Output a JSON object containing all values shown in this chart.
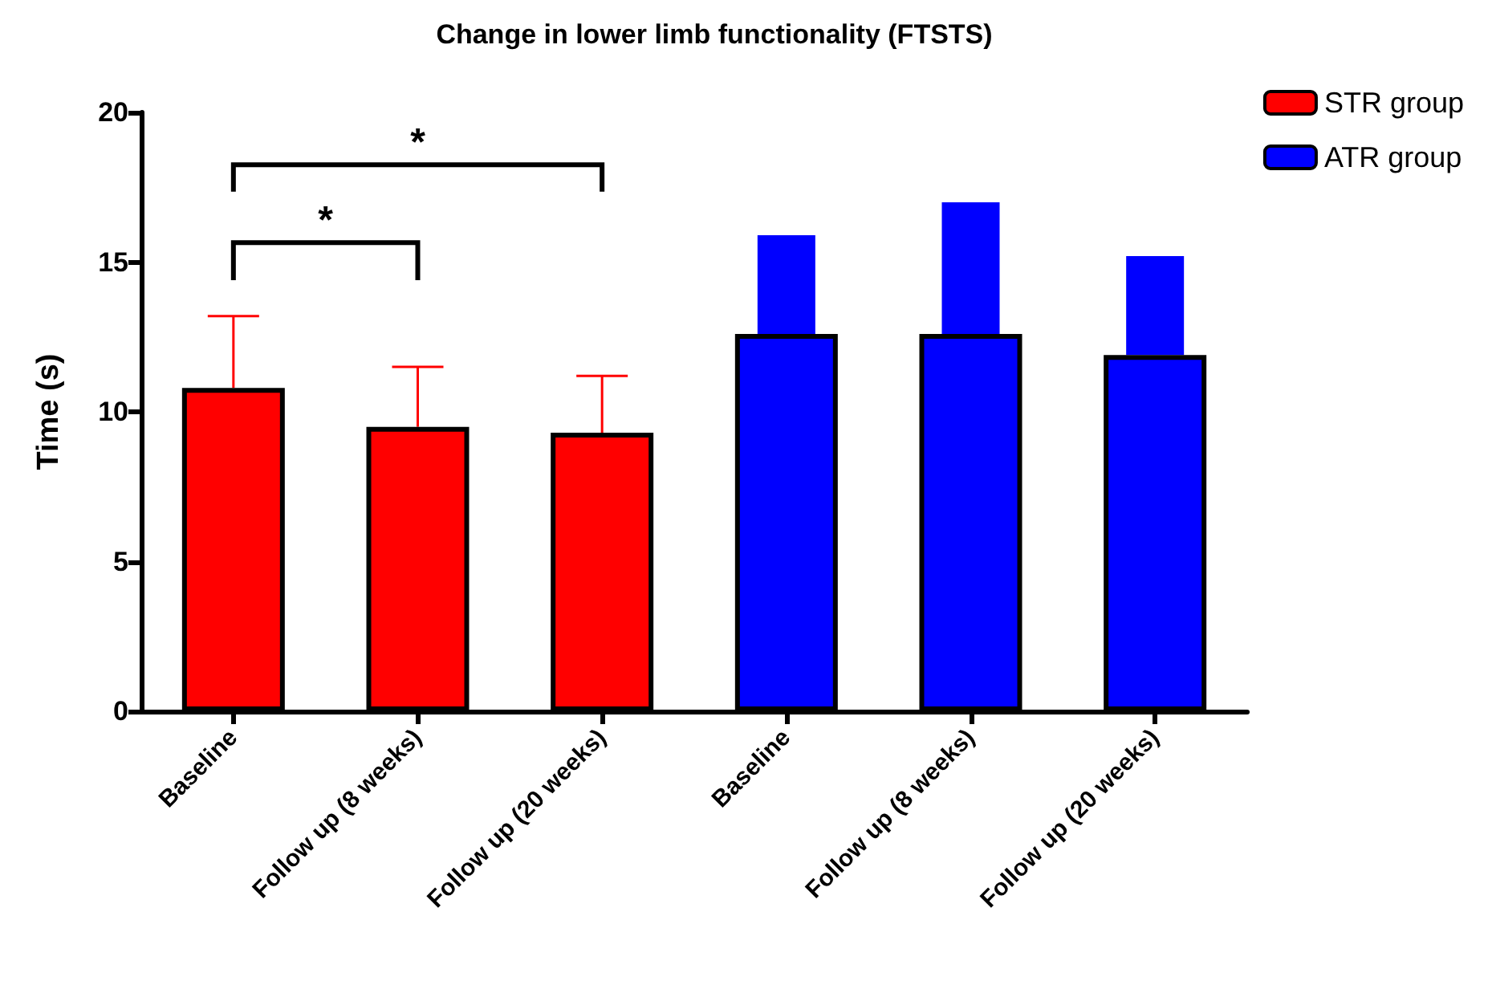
{
  "chart_data": {
    "type": "bar",
    "title": "Change in lower limb functionality (FTSTS)",
    "ylabel": "Time (s)",
    "categories": [
      "Baseline",
      "Follow up (8 weeks)",
      "Follow up (20 weeks)",
      "Baseline",
      "Follow up (8 weeks)",
      "Follow up (20 weeks)"
    ],
    "series": [
      {
        "name": "STR group",
        "color": "#ff0000",
        "values": [
          10.8,
          9.5,
          9.3,
          null,
          null,
          null
        ],
        "errors": [
          [
            10.8,
            13.2
          ],
          [
            9.5,
            11.5
          ],
          [
            9.3,
            11.2
          ],
          null,
          null,
          null
        ]
      },
      {
        "name": "ATR group",
        "color": "#0000ff",
        "values": [
          null,
          null,
          null,
          12.6,
          12.6,
          11.9
        ],
        "errors": [
          null,
          null,
          null,
          [
            12.6,
            15.9
          ],
          [
            12.6,
            17.0
          ],
          [
            11.9,
            15.2
          ]
        ]
      }
    ],
    "ylim": [
      0,
      20
    ],
    "yticks": [
      0,
      5,
      10,
      15,
      20
    ],
    "grid": false,
    "legend": "top right",
    "annotations": [
      "*",
      "*"
    ]
  }
}
